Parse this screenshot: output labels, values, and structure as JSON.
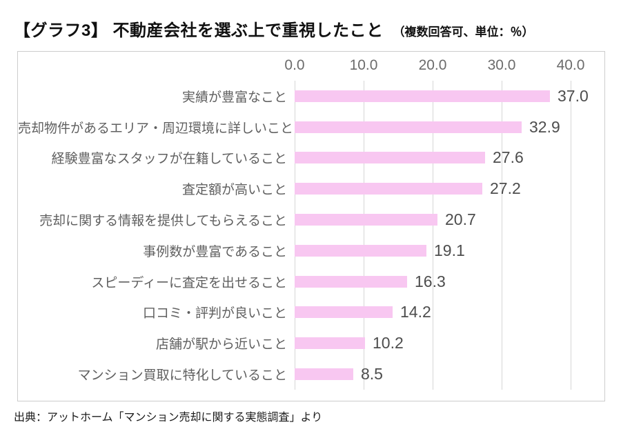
{
  "header": {
    "title": "【グラフ3】 不動産会社を選ぶ上で重視したこと",
    "note": "（複数回答可、単位：％）"
  },
  "source": "出典：アットホーム「マンション売却に関する実態調査」より",
  "colors": {
    "bar": "#f8c7f1",
    "grid": "#d6d6d6",
    "box_border": "#cccccc",
    "axis_text": "#6b6b6b",
    "category_text": "#5f5f5f",
    "value_text": "#4d4d4d",
    "title_text": "#111111",
    "background": "#ffffff"
  },
  "chart_data": {
    "type": "bar",
    "orientation": "horizontal",
    "title": "不動産会社を選ぶ上で重視したこと",
    "subtitle": "複数回答可、単位：％",
    "categories": [
      "実績が豊富なこと",
      "売却物件があるエリア・周辺環境に詳しいこと",
      "経験豊富なスタッフが在籍していること",
      "査定額が高いこと",
      "売却に関する情報を提供してもらえること",
      "事例数が豊富であること",
      "スピーディーに査定を出せること",
      "口コミ・評判が良いこと",
      "店舗が駅から近いこと",
      "マンション買取に特化していること"
    ],
    "values": [
      37.0,
      32.9,
      27.6,
      27.2,
      20.7,
      19.1,
      16.3,
      14.2,
      10.2,
      8.5
    ],
    "value_labels": [
      "37.0",
      "32.9",
      "27.6",
      "27.2",
      "20.7",
      "19.1",
      "16.3",
      "14.2",
      "10.2",
      "8.5"
    ],
    "xlabel": "",
    "ylabel": "",
    "xlim": [
      0,
      45
    ],
    "x_ticks": [
      0,
      10,
      20,
      30,
      40
    ],
    "x_tick_labels": [
      "0.0",
      "10.0",
      "20.0",
      "30.0",
      "40.0"
    ],
    "grid": true,
    "legend": false
  }
}
